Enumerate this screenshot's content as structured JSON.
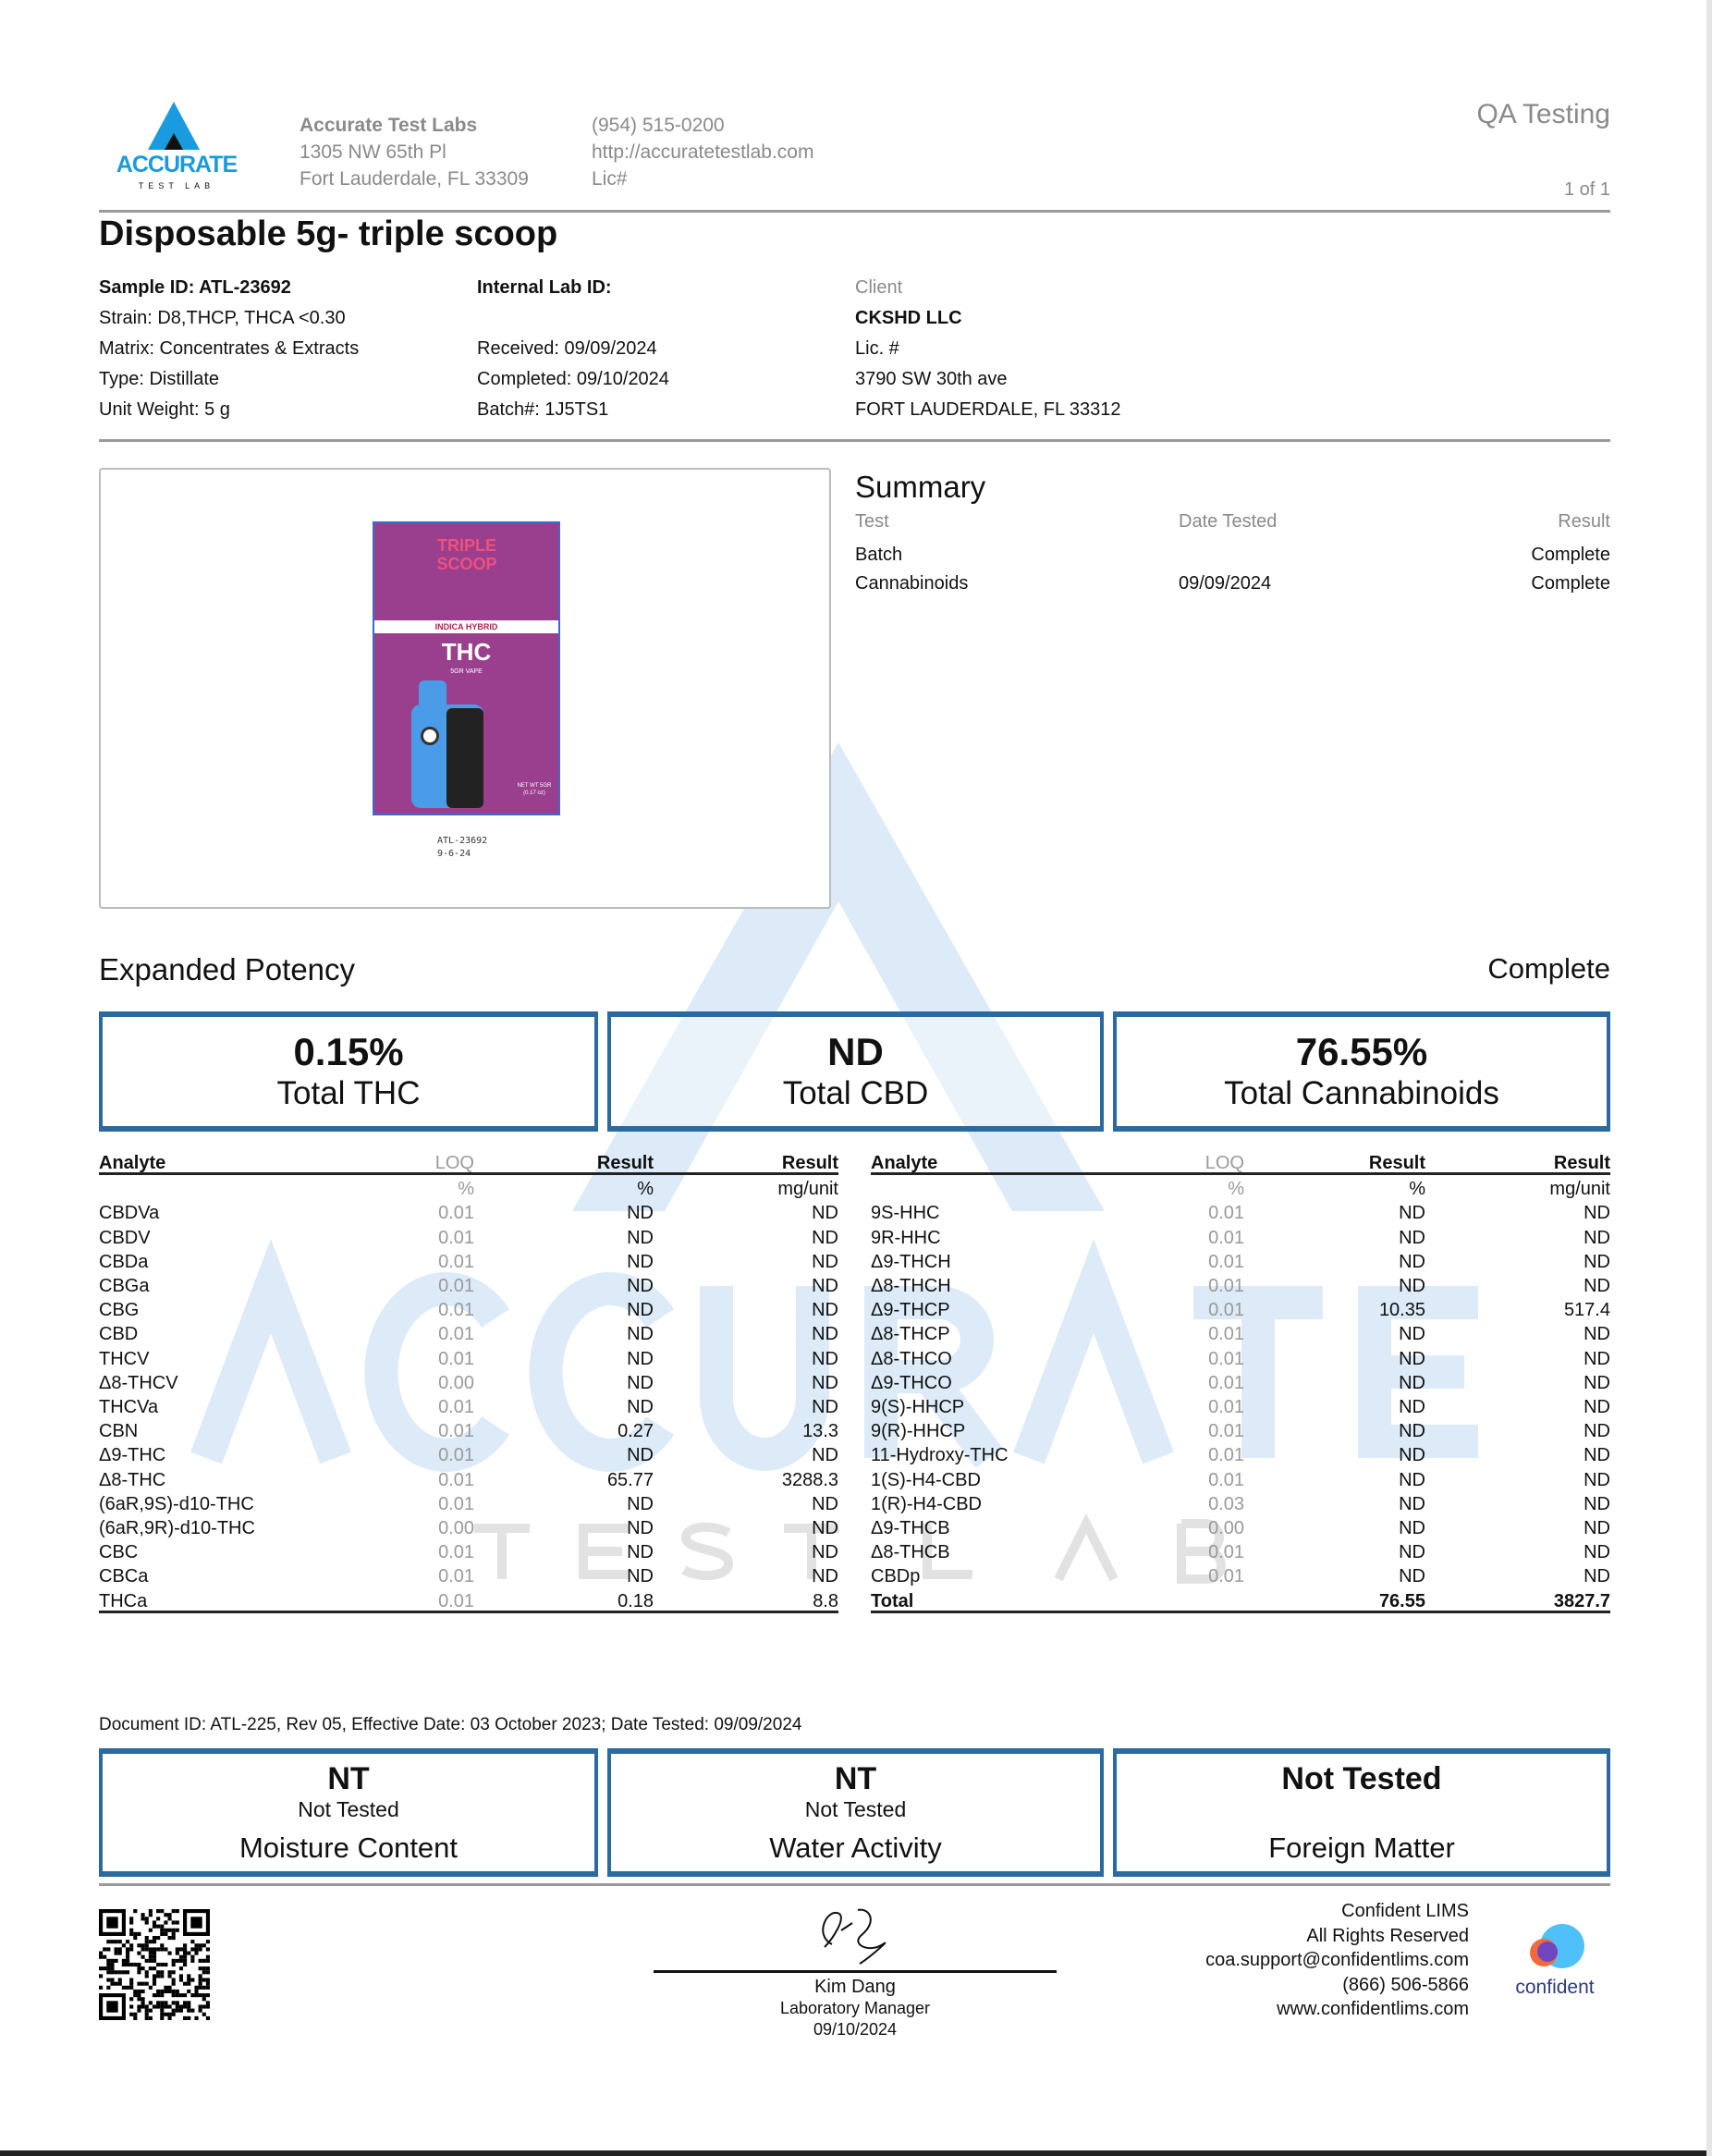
{
  "header": {
    "lab_name": "Accurate Test Labs",
    "address1": "1305 NW 65th Pl",
    "address2": "Fort Lauderdale, FL 33309",
    "phone": "(954) 515-0200",
    "website": "http://accuratetestlab.com",
    "license": "Lic#",
    "doc_type": "QA Testing",
    "page": "1 of 1",
    "logo_text": "ACCURATE",
    "logo_sub": "TEST LAB"
  },
  "title": "Disposable 5g- triple scoop",
  "sample": {
    "sample_id": "Sample ID: ATL-23692",
    "strain": "Strain: D8,THCP, THCA <0.30",
    "matrix": "Matrix: Concentrates & Extracts",
    "type": "Type: Distillate",
    "unit_weight": "Unit Weight: 5 g"
  },
  "lab": {
    "internal_id": "Internal Lab ID:",
    "received": "Received: 09/09/2024",
    "completed": "Completed: 09/10/2024",
    "batch": "Batch#: 1J5TS1"
  },
  "client": {
    "label": "Client",
    "name": "CKSHD LLC",
    "license": "Lic. #",
    "address1": "3790 SW 30th ave",
    "address2": "FORT LAUDERDALE, FL 33312"
  },
  "photo": {
    "brand_text": "TRIPLE SCOOP",
    "strip_text": "INDICA HYBRID",
    "product_text": "THC",
    "product_sub": "5GR VAPE",
    "net_wt": "NET WT 5GR (0.17 oz)",
    "caption1": "ATL-23692",
    "caption2": "9-6-24"
  },
  "summary": {
    "title": "Summary",
    "headers": [
      "Test",
      "Date Tested",
      "Result"
    ],
    "rows": [
      {
        "test": "Batch",
        "date": "",
        "result": "Complete"
      },
      {
        "test": "Cannabinoids",
        "date": "09/09/2024",
        "result": "Complete"
      }
    ]
  },
  "potency": {
    "title": "Expanded Potency",
    "status": "Complete",
    "cards": [
      {
        "value": "0.15%",
        "label": "Total THC"
      },
      {
        "value": "ND",
        "label": "Total CBD"
      },
      {
        "value": "76.55%",
        "label": "Total Cannabinoids"
      }
    ],
    "headers": [
      "Analyte",
      "LOQ",
      "Result",
      "Result"
    ],
    "units": [
      "",
      "%",
      "%",
      "mg/unit"
    ],
    "left": [
      [
        "CBDVa",
        "0.01",
        "ND",
        "ND"
      ],
      [
        "CBDV",
        "0.01",
        "ND",
        "ND"
      ],
      [
        "CBDa",
        "0.01",
        "ND",
        "ND"
      ],
      [
        "CBGa",
        "0.01",
        "ND",
        "ND"
      ],
      [
        "CBG",
        "0.01",
        "ND",
        "ND"
      ],
      [
        "CBD",
        "0.01",
        "ND",
        "ND"
      ],
      [
        "THCV",
        "0.01",
        "ND",
        "ND"
      ],
      [
        "Δ8-THCV",
        "0.00",
        "ND",
        "ND"
      ],
      [
        "THCVa",
        "0.01",
        "ND",
        "ND"
      ],
      [
        "CBN",
        "0.01",
        "0.27",
        "13.3"
      ],
      [
        "Δ9-THC",
        "0.01",
        "ND",
        "ND"
      ],
      [
        "Δ8-THC",
        "0.01",
        "65.77",
        "3288.3"
      ],
      [
        "(6aR,9S)-d10-THC",
        "0.01",
        "ND",
        "ND"
      ],
      [
        "(6aR,9R)-d10-THC",
        "0.00",
        "ND",
        "ND"
      ],
      [
        "CBC",
        "0.01",
        "ND",
        "ND"
      ],
      [
        "CBCa",
        "0.01",
        "ND",
        "ND"
      ],
      [
        "THCa",
        "0.01",
        "0.18",
        "8.8"
      ]
    ],
    "right": [
      [
        "9S-HHC",
        "0.01",
        "ND",
        "ND"
      ],
      [
        "9R-HHC",
        "0.01",
        "ND",
        "ND"
      ],
      [
        "Δ9-THCH",
        "0.01",
        "ND",
        "ND"
      ],
      [
        "Δ8-THCH",
        "0.01",
        "ND",
        "ND"
      ],
      [
        "Δ9-THCP",
        "0.01",
        "10.35",
        "517.4"
      ],
      [
        "Δ8-THCP",
        "0.01",
        "ND",
        "ND"
      ],
      [
        "Δ8-THCO",
        "0.01",
        "ND",
        "ND"
      ],
      [
        "Δ9-THCO",
        "0.01",
        "ND",
        "ND"
      ],
      [
        "9(S)-HHCP",
        "0.01",
        "ND",
        "ND"
      ],
      [
        "9(R)-HHCP",
        "0.01",
        "ND",
        "ND"
      ],
      [
        "11-Hydroxy-THC",
        "0.01",
        "ND",
        "ND"
      ],
      [
        "1(S)-H4-CBD",
        "0.01",
        "ND",
        "ND"
      ],
      [
        "1(R)-H4-CBD",
        "0.03",
        "ND",
        "ND"
      ],
      [
        "Δ9-THCB",
        "0.00",
        "ND",
        "ND"
      ],
      [
        "Δ8-THCB",
        "0.01",
        "ND",
        "ND"
      ],
      [
        "CBDp",
        "0.01",
        "ND",
        "ND"
      ]
    ],
    "total": [
      "Total",
      "",
      "76.55",
      "3827.7"
    ]
  },
  "document_id": "Document ID: ATL-225, Rev 05, Effective Date: 03 October 2023; Date Tested: 09/09/2024",
  "other_tests": [
    {
      "value": "NT",
      "sub": "Not Tested",
      "label": "Moisture Content"
    },
    {
      "value": "NT",
      "sub": "Not Tested",
      "label": "Water Activity"
    },
    {
      "value": "Not Tested",
      "sub": "",
      "label": "Foreign Matter"
    }
  ],
  "signature": {
    "name": "Kim Dang",
    "role": "Laboratory Manager",
    "date": "09/10/2024"
  },
  "footer": {
    "company": "Confident LIMS",
    "rights": "All Rights Reserved",
    "email": "coa.support@confidentlims.com",
    "phone": "(866) 506-5866",
    "website": "www.confidentlims.com",
    "logo_text": "confident"
  },
  "colors": {
    "accent_blue": "#2a6aa0",
    "logo_blue": "#1a9be0",
    "watermark_blue": "#dbecf8"
  }
}
